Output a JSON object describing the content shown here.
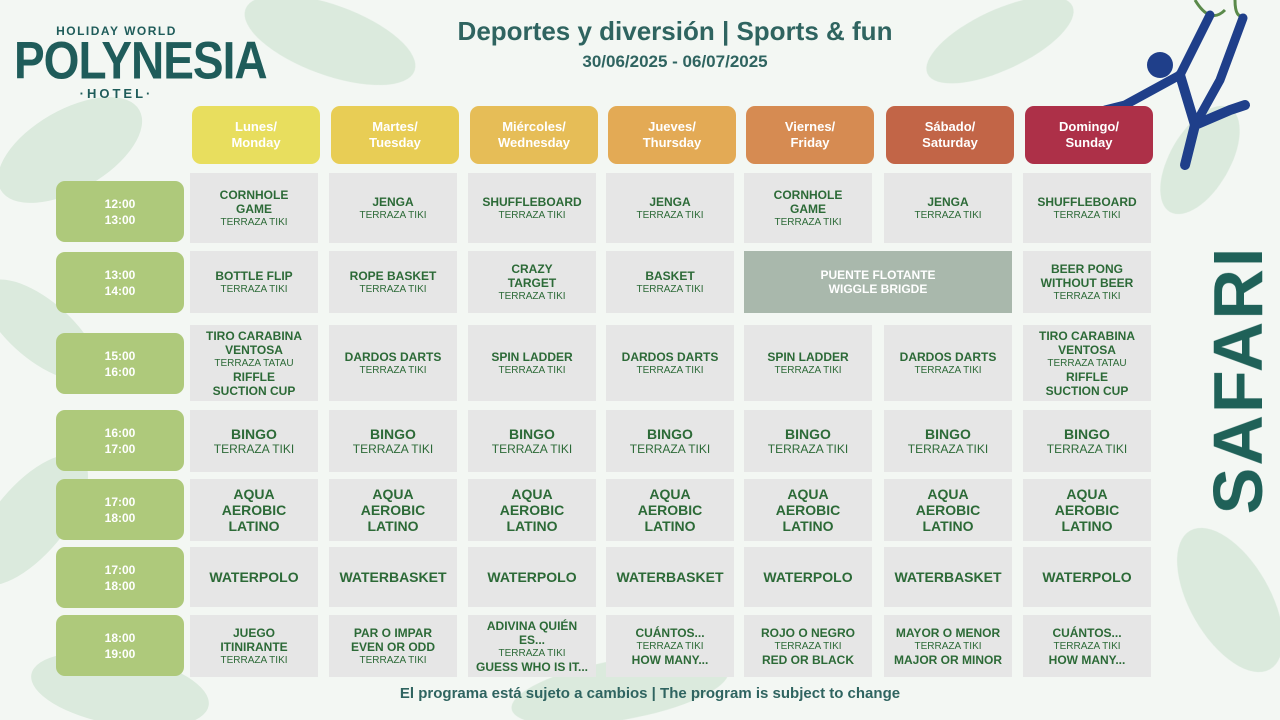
{
  "logo": {
    "top": "HOLIDAY WORLD",
    "main": "POLYNESIA",
    "sub": "·HOTEL·"
  },
  "header": {
    "title": "Deportes y diversión | Sports & fun",
    "dates": "30/06/2025 - 06/07/2025"
  },
  "side_text": "SAFARI",
  "footer": "El programa está sujeto a cambios  |  The program is subject to change",
  "colors": {
    "monday": "#e8de5e",
    "tuesday": "#e8cd55",
    "wednesday": "#e6bd57",
    "thursday": "#e3aa55",
    "friday": "#d68b52",
    "saturday": "#c26547",
    "sunday": "#ad3048",
    "time": "#aec97b",
    "cell": "#e6e6e6",
    "wide_cell": "#a9b8ac",
    "text": "#2c6a37"
  },
  "days": [
    {
      "l1": "Lunes/",
      "l2": "Monday"
    },
    {
      "l1": "Martes/",
      "l2": "Tuesday"
    },
    {
      "l1": "Miércoles/",
      "l2": "Wednesday"
    },
    {
      "l1": "Jueves/",
      "l2": "Thursday"
    },
    {
      "l1": "Viernes/",
      "l2": "Friday"
    },
    {
      "l1": "Sábado/",
      "l2": "Saturday"
    },
    {
      "l1": "Domingo/",
      "l2": "Sunday"
    }
  ],
  "times": [
    {
      "start": "12:00",
      "end": "13:00"
    },
    {
      "start": "13:00",
      "end": "14:00"
    },
    {
      "start": "15:00",
      "end": "16:00"
    },
    {
      "start": "16:00",
      "end": "17:00"
    },
    {
      "start": "17:00",
      "end": "18:00"
    },
    {
      "start": "17:00",
      "end": "18:00"
    },
    {
      "start": "18:00",
      "end": "19:00"
    }
  ],
  "rows": [
    [
      {
        "a1": "CORNHOLE",
        "a2": "GAME",
        "s1": "TERRAZA TIKI"
      },
      {
        "a1": "JENGA",
        "s1": "TERRAZA TIKI"
      },
      {
        "a1": "SHUFFLEBOARD",
        "s1": "TERRAZA TIKI"
      },
      {
        "a1": "JENGA",
        "s1": "TERRAZA TIKI"
      },
      {
        "a1": "CORNHOLE",
        "a2": "GAME",
        "s1": "TERRAZA TIKI"
      },
      {
        "a1": "JENGA",
        "s1": "TERRAZA TIKI"
      },
      {
        "a1": "SHUFFLEBOARD",
        "s1": "TERRAZA TIKI"
      }
    ],
    [
      {
        "a1": "BOTTLE FLIP",
        "s1": "TERRAZA TIKI"
      },
      {
        "a1": "ROPE BASKET",
        "s1": "TERRAZA TIKI"
      },
      {
        "a1": "CRAZY",
        "a2": "TARGET",
        "s1": "TERRAZA TIKI"
      },
      {
        "a1": "BASKET",
        "s1": "TERRAZA TIKI"
      },
      {
        "a1": "PUENTE FLOTANTE",
        "a2": "WIGGLE BRIGDE"
      },
      {
        "a1": "BEER PONG",
        "a2": "WITHOUT BEER",
        "s1": "TERRAZA TIKI"
      }
    ],
    [
      {
        "a1": "TIRO CARABINA",
        "a2": "VENTOSA",
        "s1": "TERRAZA TATAU",
        "b1": "RIFFLE",
        "b2": "SUCTION CUP"
      },
      {
        "a1": "DARDOS DARTS",
        "s1": "TERRAZA TIKI"
      },
      {
        "a1": "SPIN LADDER",
        "s1": "TERRAZA TIKI"
      },
      {
        "a1": "DARDOS DARTS",
        "s1": "TERRAZA TIKI"
      },
      {
        "a1": "SPIN LADDER",
        "s1": "TERRAZA TIKI"
      },
      {
        "a1": "DARDOS DARTS",
        "s1": "TERRAZA TIKI"
      },
      {
        "a1": "TIRO CARABINA",
        "a2": "VENTOSA",
        "s1": "TERRAZA TATAU",
        "b1": "RIFFLE",
        "b2": "SUCTION CUP"
      }
    ],
    [
      {
        "a1": "BINGO",
        "s1": "TERRAZA TIKI"
      },
      {
        "a1": "BINGO",
        "s1": "TERRAZA TIKI"
      },
      {
        "a1": "BINGO",
        "s1": "TERRAZA TIKI"
      },
      {
        "a1": "BINGO",
        "s1": "TERRAZA TIKI"
      },
      {
        "a1": "BINGO",
        "s1": "TERRAZA TIKI"
      },
      {
        "a1": "BINGO",
        "s1": "TERRAZA TIKI"
      },
      {
        "a1": "BINGO",
        "s1": "TERRAZA TIKI"
      }
    ],
    [
      {
        "a1": "AQUA",
        "a2": "AEROBIC",
        "a3": "LATINO"
      },
      {
        "a1": "AQUA",
        "a2": "AEROBIC",
        "a3": "LATINO"
      },
      {
        "a1": "AQUA",
        "a2": "AEROBIC",
        "a3": "LATINO"
      },
      {
        "a1": "AQUA",
        "a2": "AEROBIC",
        "a3": "LATINO"
      },
      {
        "a1": "AQUA",
        "a2": "AEROBIC",
        "a3": "LATINO"
      },
      {
        "a1": "AQUA",
        "a2": "AEROBIC",
        "a3": "LATINO"
      },
      {
        "a1": "AQUA",
        "a2": "AEROBIC",
        "a3": "LATINO"
      }
    ],
    [
      {
        "a1": "WATERPOLO"
      },
      {
        "a1": "WATERBASKET"
      },
      {
        "a1": "WATERPOLO"
      },
      {
        "a1": "WATERBASKET"
      },
      {
        "a1": "WATERPOLO"
      },
      {
        "a1": "WATERBASKET"
      },
      {
        "a1": "WATERPOLO"
      }
    ],
    [
      {
        "a1": "JUEGO",
        "a2": "ITINIRANTE",
        "s1": "TERRAZA TIKI"
      },
      {
        "a1": "PAR O IMPAR",
        "a2": "EVEN OR ODD",
        "s1": "TERRAZA TIKI"
      },
      {
        "a1": "ADIVINA QUIÉN",
        "a2": "ES...",
        "s1": "TERRAZA TIKI",
        "b1": "GUESS WHO IS IT..."
      },
      {
        "a1": "CUÁNTOS...",
        "s1": "TERRAZA TIKI",
        "b1": "HOW MANY..."
      },
      {
        "a1": "ROJO O NEGRO",
        "s1": "TERRAZA TIKI",
        "b1": "RED OR BLACK"
      },
      {
        "a1": "MAYOR O MENOR",
        "s1": "TERRAZA TIKI",
        "b1": "MAJOR OR MINOR"
      },
      {
        "a1": "CUÁNTOS...",
        "s1": "TERRAZA TIKI",
        "b1": "HOW MANY..."
      }
    ]
  ]
}
